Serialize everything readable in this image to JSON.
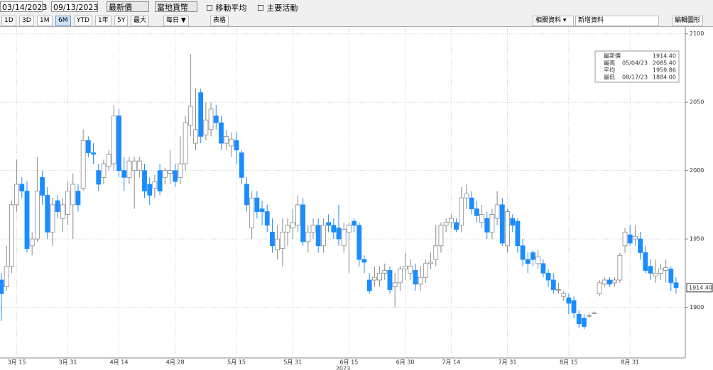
{
  "toolbar": {
    "start_date": "03/14/2023",
    "end_date": "09/13/2023",
    "price_field": "最新價",
    "currency": "當地貨幣",
    "moving_average": "移動平均",
    "key_events": "主要活動",
    "periods": [
      "1D",
      "3D",
      "1M",
      "6M",
      "YTD",
      "1年",
      "5Y",
      "最大"
    ],
    "active_period": "6M",
    "frequency": "每日 ▼",
    "table": "表格",
    "related": "相關資料 ▾",
    "add_data": "新增資料",
    "edit_chart": "編輯圖形"
  },
  "chart_data": {
    "type": "candlestick",
    "color_up": "#ffffff",
    "color_down": "#1a8cff",
    "x_label": "2023",
    "grid": true,
    "categories": [
      null,
      null,
      null,
      "3月 15",
      null,
      null,
      null,
      null,
      null,
      null,
      null,
      null,
      null,
      "3月 31",
      null,
      null,
      null,
      null,
      null,
      null,
      null,
      null,
      null,
      "4月 14",
      null,
      null,
      null,
      null,
      null,
      null,
      null,
      null,
      null,
      null,
      "4月 28",
      null,
      null,
      null,
      null,
      null,
      null,
      null,
      null,
      null,
      null,
      null,
      "5月 15",
      null,
      null,
      null,
      null,
      null,
      null,
      null,
      null,
      null,
      null,
      "5月 31",
      null,
      null,
      null,
      null,
      null,
      null,
      null,
      null,
      null,
      null,
      "6月 15",
      null,
      null,
      null,
      null,
      null,
      null,
      null,
      null,
      null,
      null,
      "6月 30",
      null,
      null,
      null,
      null,
      null,
      null,
      null,
      null,
      "7月 14",
      null,
      null,
      null,
      null,
      null,
      null,
      null,
      null,
      null,
      null,
      "7月 31",
      null,
      null,
      null,
      null,
      null,
      null,
      null,
      null,
      null,
      null,
      null,
      "8月 15",
      null,
      null,
      null,
      null,
      null,
      null,
      null,
      null,
      null,
      null,
      null,
      "8月 31",
      null,
      null,
      null,
      null,
      null,
      null,
      null,
      null,
      null
    ],
    "open": [
      1920,
      1915,
      1930,
      1975,
      1990,
      1985,
      1945,
      1950,
      1995,
      1982,
      1955,
      1978,
      1965,
      1968,
      1975,
      1985,
      1987,
      2022,
      2013,
      2000,
      1995,
      2003,
      2005,
      2040,
      2000,
      1995,
      2000,
      2000,
      2000,
      1990,
      1987,
      2000,
      1995,
      1998,
      2000,
      1995,
      2005,
      2033,
      2020,
      2057,
      2026,
      2030,
      2040,
      2035,
      2020,
      2018,
      2022,
      2013,
      1990,
      1958,
      1980,
      1972,
      1970,
      1955,
      1942,
      1943,
      1955,
      1958,
      1960,
      1975,
      1948,
      1955,
      1960,
      1945,
      1962,
      1960,
      1958,
      1945,
      1955,
      1963,
      1960,
      1935,
      1920,
      1920,
      1920,
      1925,
      1927,
      1915,
      1918,
      1928,
      1925,
      1927,
      1917,
      1922,
      1932,
      1935,
      1945,
      1960,
      1962,
      1962,
      1960,
      1980,
      1980,
      1972,
      1962,
      1965,
      1955,
      1965,
      1975,
      1945,
      1965,
      1963,
      1945,
      1935,
      1940,
      1932,
      1932,
      1925,
      1920,
      1913,
      1908,
      1907,
      1905,
      1895,
      1892,
      1894,
      1896,
      1910,
      1917,
      1920,
      1918,
      1920,
      1945,
      1953,
      1950,
      1950,
      1940,
      1930,
      1923,
      1925,
      1927,
      1928,
      1918
    ],
    "high": [
      1925,
      1945,
      1978,
      2008,
      1995,
      1992,
      1955,
      2010,
      2000,
      1988,
      1980,
      1982,
      1980,
      1992,
      1998,
      1990,
      2030,
      2025,
      2020,
      2005,
      2008,
      2015,
      2048,
      2045,
      2010,
      2010,
      2010,
      2010,
      2005,
      1995,
      1997,
      2005,
      2002,
      2015,
      2005,
      2025,
      2040,
      2085.4,
      2060,
      2060,
      2050,
      2050,
      2048,
      2040,
      2030,
      2028,
      2028,
      2015,
      1995,
      1985,
      1985,
      1978,
      1975,
      1965,
      1960,
      1965,
      1965,
      1972,
      1982,
      1980,
      1960,
      1965,
      1965,
      1965,
      1968,
      1965,
      1975,
      1962,
      1962,
      1965,
      1962,
      1938,
      1925,
      1930,
      1930,
      1932,
      1930,
      1925,
      1930,
      1940,
      1935,
      1932,
      1930,
      1935,
      1940,
      1960,
      1962,
      1965,
      1968,
      1965,
      1988,
      1990,
      1985,
      1978,
      1975,
      1970,
      1972,
      1985,
      1980,
      1972,
      1968,
      1965,
      1950,
      1940,
      1942,
      1942,
      1935,
      1928,
      1925,
      1918,
      1912,
      1910,
      1908,
      1898,
      1895,
      1896,
      1897,
      1920,
      1922,
      1922,
      1922,
      1940,
      1958,
      1960,
      1960,
      1955,
      1945,
      1935,
      1935,
      1932,
      1935,
      1930,
      1922
    ],
    "low": [
      1890,
      1912,
      1925,
      1970,
      1980,
      1940,
      1938,
      1948,
      1975,
      1950,
      1945,
      1965,
      1955,
      1960,
      1950,
      1970,
      1985,
      2010,
      2005,
      1985,
      1990,
      2000,
      2000,
      1995,
      1985,
      1990,
      1972,
      1995,
      1980,
      1975,
      1980,
      1982,
      1990,
      1990,
      1988,
      1990,
      2000,
      2025,
      2015,
      2020,
      2022,
      2025,
      2030,
      2015,
      2015,
      2010,
      2005,
      1990,
      1970,
      1950,
      1965,
      1960,
      1955,
      1940,
      1935,
      1930,
      1945,
      1950,
      1955,
      1945,
      1940,
      1950,
      1940,
      1940,
      1955,
      1950,
      1945,
      1940,
      1925,
      1955,
      1930,
      1925,
      1910,
      1915,
      1915,
      1920,
      1910,
      1900,
      1912,
      1920,
      1920,
      1912,
      1912,
      1918,
      1928,
      1930,
      1940,
      1955,
      1958,
      1955,
      1955,
      1972,
      1968,
      1962,
      1958,
      1950,
      1950,
      1960,
      1945,
      1940,
      1955,
      1940,
      1930,
      1925,
      1930,
      1928,
      1922,
      1915,
      1910,
      1910,
      1905,
      1895,
      1892,
      1885,
      1884,
      1892,
      1895,
      1908,
      1915,
      1915,
      1915,
      1918,
      1940,
      1945,
      1945,
      1935,
      1925,
      1920,
      1918,
      1920,
      1918,
      1912,
      1910
    ],
    "close": [
      1910,
      1930,
      1975,
      1990,
      1985,
      1943,
      1950,
      1985,
      1982,
      1955,
      1975,
      1970,
      1975,
      1985,
      1990,
      1975,
      2022,
      2013,
      2012,
      1990,
      2005,
      2012,
      2040,
      2000,
      1995,
      2007,
      2007,
      2007,
      1985,
      1982,
      1992,
      1985,
      2000,
      2000,
      1992,
      2005,
      2035,
      2047,
      2030,
      2025,
      2037,
      2045,
      2035,
      2020,
      2025,
      2023,
      2015,
      1995,
      1975,
      1980,
      1970,
      1970,
      1960,
      1945,
      1950,
      1955,
      1960,
      1962,
      1975,
      1948,
      1955,
      1960,
      1945,
      1960,
      1960,
      1955,
      1950,
      1957,
      1960,
      1960,
      1935,
      1933,
      1912,
      1922,
      1925,
      1927,
      1913,
      1918,
      1928,
      1930,
      1930,
      1917,
      1922,
      1932,
      1933,
      1945,
      1960,
      1962,
      1965,
      1957,
      1980,
      1983,
      1972,
      1967,
      1968,
      1955,
      1968,
      1975,
      1947,
      1970,
      1960,
      1945,
      1935,
      1932,
      1935,
      1937,
      1925,
      1920,
      1913,
      1913,
      1910,
      1903,
      1896,
      1888,
      1886,
      1894,
      1896,
      1918,
      1920,
      1917,
      1920,
      1938,
      1955,
      1947,
      1952,
      1940,
      1927,
      1925,
      1925,
      1928,
      1929,
      1918,
      1914.4
    ],
    "ylim": [
      1863,
      2104
    ],
    "yticks": [
      1900,
      1950,
      2000,
      2050,
      2100
    ],
    "legend": [
      {
        "name": "最新價",
        "value": "1914.40"
      },
      {
        "name": "最高",
        "date": "05/04/23",
        "value": "2085.40"
      },
      {
        "name": "平均",
        "value": "1959.86"
      },
      {
        "name": "最低",
        "date": "08/17/23",
        "value": "1884.00"
      }
    ]
  }
}
